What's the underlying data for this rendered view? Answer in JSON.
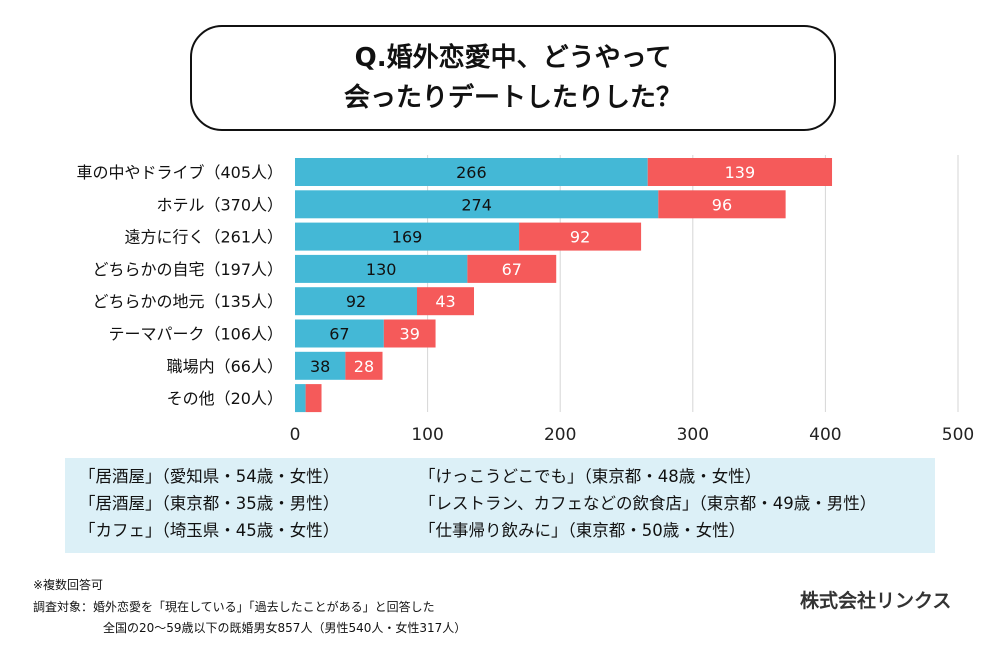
{
  "chart_data": {
    "type": "bar",
    "orientation": "horizontal",
    "stacked": true,
    "title": [
      "Q.婚外恋愛中、どうやって",
      "会ったりデートしたりした？"
    ],
    "categories": [
      "車の中やドライブ（405人）",
      "ホテル（370人）",
      "遠方に行く（261人）",
      "どちらかの自宅（197人）",
      "どちらかの地元（135人）",
      "テーマパーク（106人）",
      "職場内（66人）",
      "その他（20人）"
    ],
    "series": [
      {
        "values": [
          266,
          274,
          169,
          130,
          92,
          67,
          38,
          8
        ],
        "color": "#44b8d6",
        "labels_shown": [
          true,
          true,
          true,
          true,
          true,
          true,
          true,
          false
        ]
      },
      {
        "values": [
          139,
          96,
          92,
          67,
          43,
          39,
          28,
          12
        ],
        "color": "#f55a5a",
        "labels_shown": [
          true,
          true,
          true,
          true,
          true,
          true,
          true,
          false
        ]
      }
    ],
    "xlim": [
      0,
      500
    ],
    "xticks": [
      "0",
      "100",
      "200",
      "300",
      "400",
      "500"
    ],
    "grid": true
  },
  "quotes": {
    "left": [
      "「居酒屋」（愛知県・54歳・女性）",
      "「居酒屋」（東京都・35歳・男性）",
      "「カフェ」（埼玉県・45歳・女性）"
    ],
    "right": [
      "「けっこうどこでも」（東京都・48歳・女性）",
      "「レストラン、カフェなどの飲食店」（東京都・49歳・男性）",
      "「仕事帰り飲みに」（東京都・50歳・女性）"
    ]
  },
  "footnote": {
    "line1": "※複数回答可",
    "line2": "調査対象：婚外恋愛を「現在している」「過去したことがある」と回答した",
    "line3": "全国の20〜59歳以下の既婚男女857人（男性540人・女性317人）"
  },
  "company": "株式会社リンクス"
}
